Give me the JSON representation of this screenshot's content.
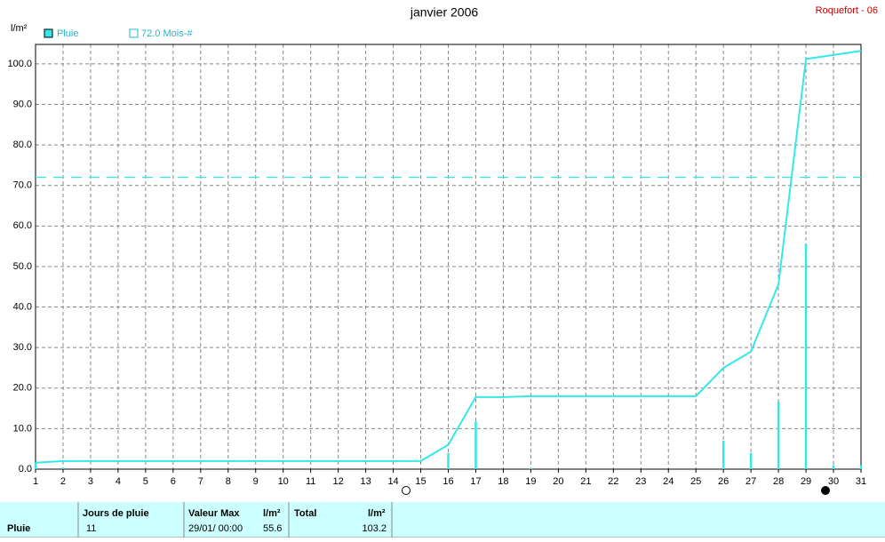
{
  "chart_data": {
    "type": "rain",
    "title": "janvier 2006",
    "station": "Roquefort - 06",
    "y_unit": "l/m²",
    "x": [
      1,
      2,
      3,
      4,
      5,
      6,
      7,
      8,
      9,
      10,
      11,
      12,
      13,
      14,
      15,
      16,
      17,
      18,
      19,
      20,
      21,
      22,
      23,
      24,
      25,
      26,
      27,
      28,
      29,
      30,
      31
    ],
    "series": [
      {
        "name": "Pluie",
        "color": "#33e8e8",
        "values": [
          1.6,
          0.4,
          0,
          0,
          0,
          0,
          0,
          0,
          0,
          0,
          0,
          0,
          0,
          0,
          0,
          4.0,
          11.8,
          0,
          0.2,
          0,
          0,
          0,
          0,
          0,
          0,
          7.0,
          4.0,
          16.6,
          55.6,
          1.0,
          1.0
        ],
        "cumulative_values": [
          1.6,
          2.0,
          2.0,
          2.0,
          2.0,
          2.0,
          2.0,
          2.0,
          2.0,
          2.0,
          2.0,
          2.0,
          2.0,
          2.0,
          2.0,
          6.0,
          17.8,
          17.8,
          18.0,
          18.0,
          18.0,
          18.0,
          18.0,
          18.0,
          18.0,
          25.0,
          29.0,
          45.6,
          101.2,
          102.2,
          103.2
        ]
      }
    ],
    "reference": {
      "label": "72.0 Mois-#",
      "value": 72,
      "color": "#33e8e8"
    },
    "xlim": [
      1,
      31
    ],
    "xticks": [
      1,
      2,
      3,
      4,
      5,
      6,
      7,
      8,
      9,
      10,
      11,
      12,
      13,
      14,
      15,
      16,
      17,
      18,
      19,
      20,
      21,
      22,
      23,
      24,
      25,
      26,
      27,
      28,
      29,
      30,
      31
    ],
    "ylim": [
      0,
      104.8
    ],
    "yticks": [
      {
        "value": 0,
        "label": "0.0"
      },
      {
        "value": 10,
        "label": "10.0"
      },
      {
        "value": 20,
        "label": "20.0"
      },
      {
        "value": 30,
        "label": "30.0"
      },
      {
        "value": 40,
        "label": "40.0"
      },
      {
        "value": 50,
        "label": "50.0"
      },
      {
        "value": 60,
        "label": "60.0"
      },
      {
        "value": 70,
        "label": "70.0"
      },
      {
        "value": 80,
        "label": "80.0"
      },
      {
        "value": 90,
        "label": "90.0"
      },
      {
        "value": 100,
        "label": "100.0"
      }
    ],
    "grid": true
  },
  "summary_table": {
    "headers": [
      "Jours de pluie",
      "Valeur Max",
      "l/m²",
      "Total",
      "l/m²"
    ],
    "rows": [
      [
        "Pluie",
        "11",
        "29/01/  00:00",
        "55.6",
        "103.2"
      ]
    ]
  }
}
